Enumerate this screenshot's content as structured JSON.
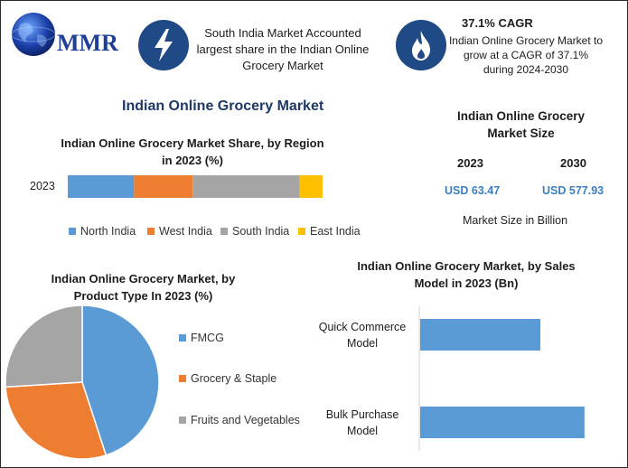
{
  "brand": {
    "name": "MMR"
  },
  "header": {
    "region_text": "South India Market Accounted largest share in the Indian Online Grocery Market",
    "cagr_title": "37.1% CAGR",
    "cagr_text": "Indian Online Grocery Market to grow at a CAGR of 37.1% during 2024-2030",
    "icons": [
      "lightning-icon",
      "flame-icon"
    ]
  },
  "main_title": "Indian Online Grocery Market",
  "market_size": {
    "title": "Indian Online Grocery Market Size",
    "years": [
      "2023",
      "2030"
    ],
    "values": [
      "USD 63.47",
      "USD 577.93"
    ],
    "note": "Market Size in Billion"
  },
  "colors": {
    "brand_blue": "#1f4a86",
    "north_india": "#5b9bd5",
    "west_india": "#ed7d31",
    "south_india": "#a5a5a5",
    "east_india": "#ffc000",
    "value_blue": "#3c7fc1"
  },
  "chart_data": [
    {
      "type": "bar",
      "orientation": "horizontal",
      "stacked": true,
      "title": "Indian Online Grocery Market Share, by Region in 2023 (%)",
      "categories": [
        "2023"
      ],
      "series": [
        {
          "name": "North India",
          "values": [
            26
          ],
          "color": "#5b9bd5"
        },
        {
          "name": "West India",
          "values": [
            23
          ],
          "color": "#ed7d31"
        },
        {
          "name": "South India",
          "values": [
            42
          ],
          "color": "#a5a5a5"
        },
        {
          "name": "East India",
          "values": [
            9
          ],
          "color": "#ffc000"
        }
      ],
      "legend": "bottom"
    },
    {
      "type": "pie",
      "title": "Indian Online Grocery Market, by Product Type In 2023 (%)",
      "labels": [
        "FMCG",
        "Grocery & Staple",
        "Fruits and Vegetables"
      ],
      "values": [
        45,
        29,
        26
      ],
      "colors": [
        "#5b9bd5",
        "#ed7d31",
        "#a5a5a5"
      ],
      "legend": "right"
    },
    {
      "type": "bar",
      "orientation": "horizontal",
      "title": "Indian Online Grocery Market, by Sales Model in 2023 (Bn)",
      "categories": [
        "Quick Commerce Model",
        "Bulk Purchase Model"
      ],
      "values": [
        24.5,
        33.5
      ],
      "color": "#5b9bd5",
      "xlim": [
        0,
        35
      ]
    }
  ]
}
